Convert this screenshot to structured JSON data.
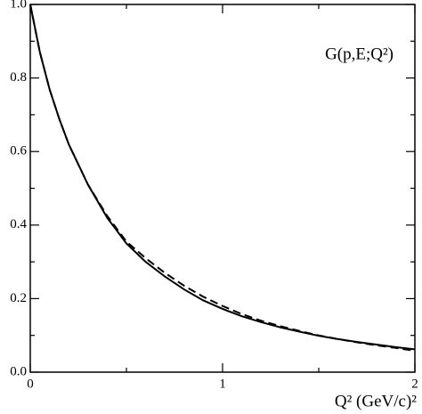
{
  "chart_data": {
    "type": "line",
    "annotation": "G(p,E;Q²)",
    "x_label": "Q² (GeV/c)²",
    "x": [
      0,
      0.05,
      0.1,
      0.15,
      0.2,
      0.3,
      0.4,
      0.5,
      0.6,
      0.7,
      0.8,
      0.9,
      1.0,
      1.1,
      1.2,
      1.3,
      1.4,
      1.5,
      1.6,
      1.7,
      1.8,
      1.9,
      2.0
    ],
    "series": [
      {
        "color": "#000000",
        "style": "solid",
        "values": [
          1.0,
          0.87,
          0.77,
          0.69,
          0.62,
          0.51,
          0.42,
          0.35,
          0.3,
          0.26,
          0.225,
          0.195,
          0.172,
          0.152,
          0.136,
          0.122,
          0.11,
          0.099,
          0.09,
          0.082,
          0.075,
          0.068,
          0.062
        ]
      },
      {
        "color": "#000000",
        "style": "dashed",
        "values": [
          1.0,
          0.87,
          0.77,
          0.69,
          0.62,
          0.51,
          0.425,
          0.355,
          0.31,
          0.27,
          0.235,
          0.205,
          0.18,
          0.158,
          0.14,
          0.125,
          0.112,
          0.1,
          0.09,
          0.081,
          0.073,
          0.066,
          0.058
        ]
      }
    ],
    "xlim": [
      0,
      2
    ],
    "xticks": [
      0,
      1,
      2
    ],
    "xminorticks": [
      0.5,
      1.5
    ],
    "ylim": [
      0,
      1
    ],
    "yticks": [
      {
        "value": 0,
        "label": "0.0"
      },
      {
        "value": 0.2,
        "label": "0.2"
      },
      {
        "value": 0.4,
        "label": "0.4"
      },
      {
        "value": 0.6,
        "label": "0.6"
      },
      {
        "value": 0.8,
        "label": "0.8"
      },
      {
        "value": 1,
        "label": "1.0"
      }
    ],
    "yminorticks": [
      0.1,
      0.3,
      0.5,
      0.7,
      0.9
    ]
  }
}
